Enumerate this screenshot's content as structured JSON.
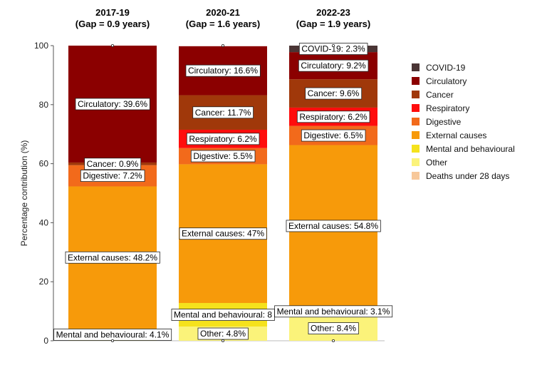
{
  "chart_data": {
    "type": "bar",
    "stacked": true,
    "ylabel": "Percentage contribution (%)",
    "ylim": [
      0,
      100
    ],
    "yticks": [
      0,
      20,
      40,
      60,
      80,
      100
    ],
    "legend_position": "right",
    "categories": [
      "COVID-19",
      "Circulatory",
      "Cancer",
      "Respiratory",
      "Digestive",
      "External causes",
      "Mental and behavioural",
      "Other",
      "Deaths under 28 days"
    ],
    "colors": {
      "COVID-19": "#4a3535",
      "Circulatory": "#8b0000",
      "Cancer": "#a0380a",
      "Respiratory": "#ff0d0d",
      "Digestive": "#f26a1b",
      "External causes": "#f79a0a",
      "Mental and behavioural": "#f5e21c",
      "Other": "#fbf37a",
      "Deaths under 28 days": "#f7c89a"
    },
    "panels": [
      {
        "title_line1": "2017-19",
        "title_line2": "(Gap = 0.9 years)",
        "segments": [
          {
            "cause": "Mental and behavioural",
            "value": 4.1,
            "label": "Mental and behavioural: 4.1%"
          },
          {
            "cause": "External causes",
            "value": 48.2,
            "label": "External causes: 48.2%"
          },
          {
            "cause": "Digestive",
            "value": 7.2,
            "label": "Digestive: 7.2%"
          },
          {
            "cause": "Cancer",
            "value": 0.9,
            "label": "Cancer: 0.9%"
          },
          {
            "cause": "Circulatory",
            "value": 39.6,
            "label": "Circulatory: 39.6%"
          }
        ]
      },
      {
        "title_line1": "2020-21",
        "title_line2": "(Gap = 1.6 years)",
        "segments": [
          {
            "cause": "Other",
            "value": 4.8,
            "label": "Other: 4.8%"
          },
          {
            "cause": "Mental and behavioural",
            "value": 8,
            "label": "Mental and behavioural: 8"
          },
          {
            "cause": "External causes",
            "value": 47,
            "label": "External causes: 47%"
          },
          {
            "cause": "Digestive",
            "value": 5.5,
            "label": "Digestive: 5.5%"
          },
          {
            "cause": "Respiratory",
            "value": 6.2,
            "label": "Respiratory: 6.2%"
          },
          {
            "cause": "Cancer",
            "value": 11.7,
            "label": "Cancer: 11.7%"
          },
          {
            "cause": "Circulatory",
            "value": 16.6,
            "label": "Circulatory: 16.6%"
          }
        ]
      },
      {
        "title_line1": "2022-23",
        "title_line2": "(Gap = 1.9 years)",
        "segments": [
          {
            "cause": "Other",
            "value": 8.4,
            "label": "Other: 8.4%"
          },
          {
            "cause": "Mental and behavioural",
            "value": 3.1,
            "label": "Mental and behavioural: 3.1%"
          },
          {
            "cause": "External causes",
            "value": 54.8,
            "label": "External causes: 54.8%"
          },
          {
            "cause": "Digestive",
            "value": 6.5,
            "label": "Digestive: 6.5%"
          },
          {
            "cause": "Respiratory",
            "value": 6.2,
            "label": "Respiratory: 6.2%"
          },
          {
            "cause": "Cancer",
            "value": 9.6,
            "label": "Cancer: 9.6%"
          },
          {
            "cause": "Circulatory",
            "value": 9.2,
            "label": "Circulatory: 9.2%"
          },
          {
            "cause": "COVID-19",
            "value": 2.3,
            "label": "COVID-19: 2.3%"
          }
        ]
      }
    ]
  }
}
